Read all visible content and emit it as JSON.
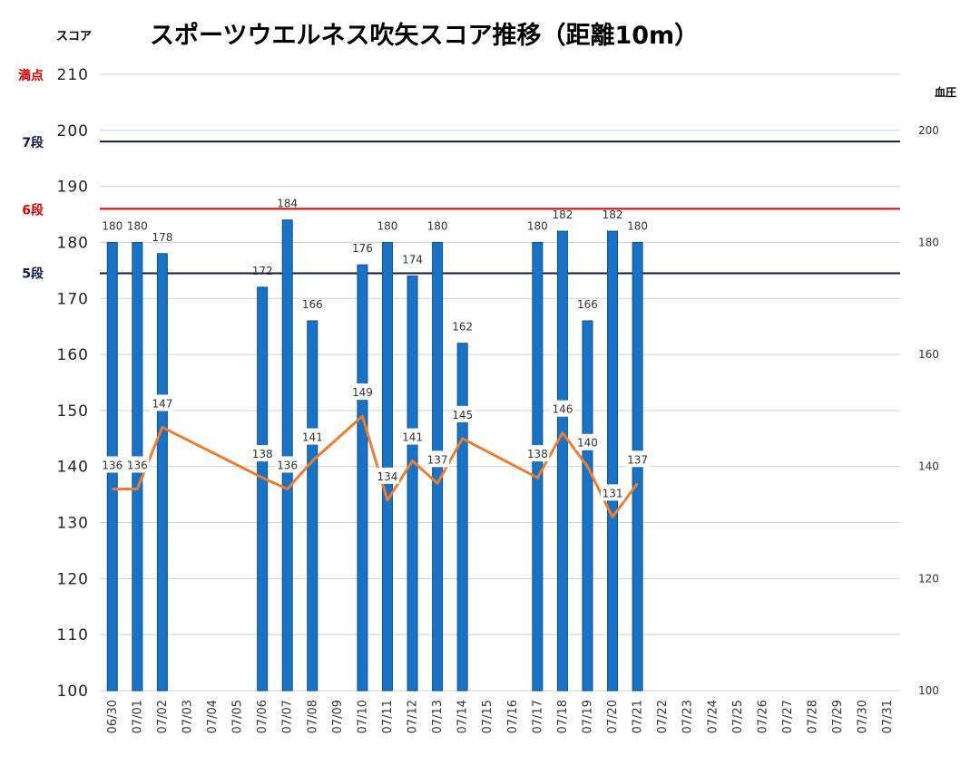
{
  "chart_data": {
    "type": "bar+line",
    "title": "スポーツウエルネス吹矢スコア推移（距離10m）",
    "ylabel": "スコア",
    "y2label": "血圧",
    "ylim": [
      100,
      210
    ],
    "y2lim": [
      100,
      210
    ],
    "yticks": [
      "100",
      "110",
      "120",
      "130",
      "140",
      "150",
      "160",
      "170",
      "180",
      "190",
      "200",
      "210"
    ],
    "y2ticks": [
      "100",
      "120",
      "140",
      "160",
      "180",
      "200"
    ],
    "grid": true,
    "categories": [
      "06/30",
      "07/01",
      "07/02",
      "07/03",
      "07/04",
      "07/05",
      "07/06",
      "07/07",
      "07/08",
      "07/09",
      "07/10",
      "07/11",
      "07/12",
      "07/13",
      "07/14",
      "07/15",
      "07/16",
      "07/17",
      "07/18",
      "07/19",
      "07/20",
      "07/21",
      "07/22",
      "07/23",
      "07/24",
      "07/25",
      "07/26",
      "07/27",
      "07/28",
      "07/29",
      "07/30",
      "07/31"
    ],
    "series": [
      {
        "type": "bar",
        "values": [
          180,
          180,
          178,
          null,
          null,
          null,
          172,
          184,
          166,
          null,
          176,
          180,
          174,
          180,
          162,
          null,
          null,
          180,
          182,
          166,
          182,
          180,
          null,
          null,
          null,
          null,
          null,
          null,
          null,
          null,
          null,
          null
        ]
      },
      {
        "type": "line",
        "axis": "right",
        "values": [
          136,
          136,
          147,
          null,
          null,
          null,
          138,
          136,
          141,
          null,
          149,
          134,
          141,
          137,
          145,
          null,
          null,
          138,
          146,
          140,
          131,
          137,
          null,
          null,
          null,
          null,
          null,
          null,
          null,
          null,
          null,
          null
        ]
      }
    ],
    "reference_lines": [
      {
        "label": "満点",
        "value": 210,
        "color": "#e00000",
        "drawn": false
      },
      {
        "label": "7段",
        "value": 198,
        "color": "#0d1b4a",
        "drawn": true
      },
      {
        "label": "6段",
        "value": 186,
        "color": "#e00000",
        "drawn": true
      },
      {
        "label": "5段",
        "value": 174.5,
        "color": "#0d1b4a",
        "drawn": true
      }
    ],
    "colors": {
      "bar": "#1a72c4",
      "bar_edge": "#0b4f93",
      "line": "#ed7d31",
      "grid": "#d0d0d0"
    }
  }
}
